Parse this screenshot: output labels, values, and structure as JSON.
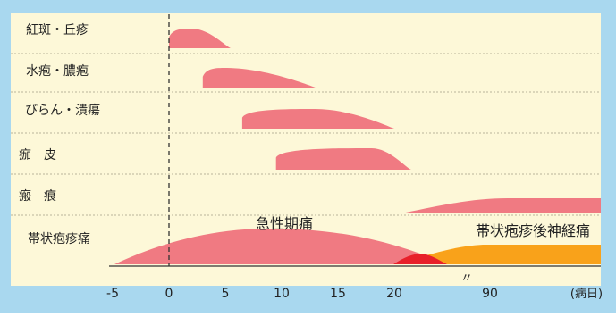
{
  "chart_data": {
    "type": "area",
    "colors": {
      "frame": "#a9d8ef",
      "plot_bg": "#fdf8d8",
      "lesion": "#f07a82",
      "postherpetic": "#f9a21a",
      "overlap": "#e8202a",
      "text": "#222222"
    },
    "x_axis": {
      "ticks": [
        "-5",
        "0",
        "5",
        "10",
        "15",
        "20",
        "90"
      ],
      "unit_label": "(病日)",
      "break_mark": "〃",
      "day0_dashed_line": true
    },
    "rows": [
      {
        "label": "紅斑・丘疹",
        "start": 0,
        "peak": 2,
        "end": 5.5
      },
      {
        "label": "水疱・膿疱",
        "start": 3,
        "peak": 5,
        "end": 13
      },
      {
        "label": "びらん・潰瘍",
        "start": 6.5,
        "peak": 13,
        "end": 20
      },
      {
        "label": "痂　皮",
        "start": 9.5,
        "peak": 18,
        "end": 21.5
      },
      {
        "label": "瘢　痕",
        "start": 21,
        "peak": 90,
        "end": "ongoing"
      },
      {
        "label": "帯状疱疹痛",
        "start": -5,
        "peak": 8,
        "end": 24
      }
    ],
    "annotations": {
      "acute_pain": "急性期痛",
      "postherpetic_neuralgia": "帯状疱疹後神経痛"
    }
  }
}
